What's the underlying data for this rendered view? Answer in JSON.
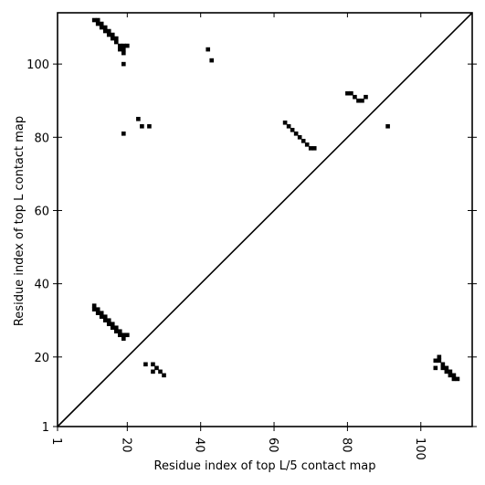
{
  "chart_data": {
    "type": "scatter",
    "title": "",
    "xlabel": "Residue index of top L/5 contact map",
    "ylabel": "Residue index of top L contact map",
    "xlim": [
      1,
      114
    ],
    "ylim": [
      1,
      114
    ],
    "x_ticks": [
      1,
      20,
      40,
      60,
      80,
      100
    ],
    "y_ticks": [
      1,
      20,
      40,
      60,
      80,
      100
    ],
    "x_tick_labels": [
      "1",
      "20",
      "40",
      "60",
      "80",
      "100"
    ],
    "y_tick_labels": [
      "1",
      "20",
      "40",
      "60",
      "80",
      "100"
    ],
    "x_tick_rotation_deg": 90,
    "grid": false,
    "legend": "none",
    "marker": "square",
    "marker_color": "#000000",
    "diagonal": {
      "from": [
        1,
        1
      ],
      "to": [
        114,
        114
      ],
      "color": "#000000"
    },
    "series": [
      {
        "region": "upper-left",
        "x": [
          11,
          12,
          12,
          13,
          13,
          14,
          14,
          15,
          15,
          16,
          16,
          17,
          17,
          18,
          18,
          19,
          19,
          19,
          20,
          19,
          42,
          43,
          23,
          24,
          26,
          19,
          80,
          81,
          82,
          83,
          84,
          85,
          63,
          64,
          65,
          66,
          67,
          68,
          69,
          70,
          71,
          91
        ],
        "y": [
          112,
          111,
          112,
          110,
          111,
          109,
          110,
          108,
          109,
          107,
          108,
          106,
          107,
          105,
          104,
          105,
          104,
          103,
          105,
          100,
          104,
          101,
          85,
          83,
          83,
          81,
          92,
          92,
          91,
          90,
          90,
          91,
          84,
          83,
          82,
          81,
          80,
          79,
          78,
          77,
          77,
          83
        ]
      },
      {
        "region": "lower-left",
        "x": [
          11,
          11,
          12,
          12,
          13,
          13,
          14,
          14,
          15,
          15,
          16,
          16,
          17,
          17,
          18,
          18,
          19,
          19,
          20,
          25,
          27,
          27,
          28,
          29,
          30
        ],
        "y": [
          34,
          33,
          33,
          32,
          32,
          31,
          31,
          30,
          30,
          29,
          29,
          28,
          28,
          27,
          27,
          26,
          26,
          25,
          26,
          18,
          18,
          16,
          17,
          16,
          15
        ]
      },
      {
        "region": "lower-right",
        "x": [
          104,
          105,
          105,
          106,
          106,
          107,
          107,
          108,
          108,
          109,
          109,
          110,
          104
        ],
        "y": [
          19,
          19,
          20,
          18,
          17,
          17,
          16,
          16,
          15,
          15,
          14,
          14,
          17
        ]
      }
    ]
  }
}
